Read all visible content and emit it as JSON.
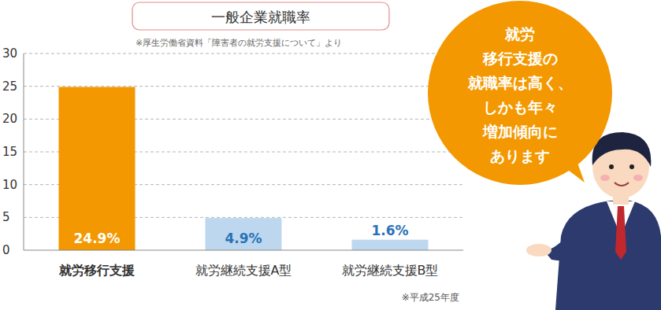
{
  "chart_data": {
    "type": "bar",
    "title": "一般企業就職率",
    "annotations": [
      "※厚生労働省資料「障害者の就労支援について」より",
      "※平成25年度",
      "就労\n移行支援の\n就職率は高く、\nしかも年々\n増加傾向に\nあります"
    ],
    "categories": [
      "就労移行支援",
      "就労継続支援A型",
      "就労継続支援B型"
    ],
    "values": [
      24.9,
      4.9,
      1.6
    ],
    "value_labels": [
      "24.9%",
      "4.9%",
      "1.6%"
    ],
    "colors": [
      "#f39800",
      "#bdd7ee",
      "#bdd7ee"
    ],
    "ylim": [
      0,
      30
    ],
    "yticks": [
      0,
      5,
      10,
      15,
      20,
      25,
      30
    ],
    "grid": true,
    "data_labels": true
  }
}
